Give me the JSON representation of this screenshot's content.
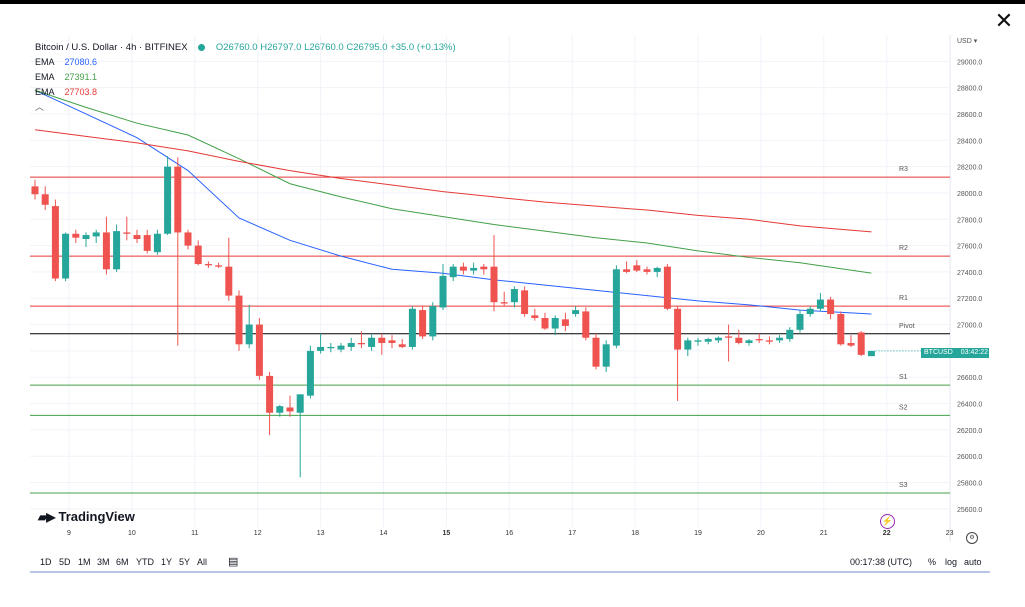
{
  "window": {
    "close_label": "✕"
  },
  "header": {
    "title": "Bitcoin / U.S. Dollar · 4h · BITFINEX",
    "ohlc": "O26760.0  H26797.0  L26760.0  C26795.0  +35.0 (+0.13%)",
    "indicators": [
      {
        "name": "EMA",
        "value": "27080.6",
        "color": "#2962ff"
      },
      {
        "name": "EMA",
        "value": "27391.1",
        "color": "#43a047"
      },
      {
        "name": "EMA",
        "value": "27703.8",
        "color": "#e53935"
      }
    ],
    "collapse_icon": "chevron-up-icon"
  },
  "price_scale": {
    "currency": "USD",
    "dropdown_icon": "chevron-down-icon"
  },
  "symbol_tag": {
    "symbol": "BTCUSD",
    "countdown": "03:42:22"
  },
  "branding": {
    "logo_text": "TradingView"
  },
  "bottom_bar": {
    "ranges": [
      "1D",
      "5D",
      "1M",
      "3M",
      "6M",
      "YTD",
      "1Y",
      "5Y",
      "All"
    ],
    "calendar_icon": "calendar-range-icon",
    "clock": "00:17:38 (UTC)",
    "percent": "%",
    "log": "log",
    "auto": "auto"
  },
  "colors": {
    "up": "#26a69a",
    "down": "#ef5350",
    "pivot": "#000000",
    "resistance": "#e53935",
    "support": "#43a047"
  },
  "chart_data": {
    "type": "candlestick",
    "title": "Bitcoin / U.S. Dollar · 4h · BITFINEX",
    "y_ticks": [
      25600,
      25800,
      26000,
      26200,
      26400,
      26600,
      26800,
      27000,
      27200,
      27400,
      27600,
      27800,
      28000,
      28200,
      28400,
      28600,
      28800,
      29000
    ],
    "ylim": [
      25500,
      29200
    ],
    "x_ticks": [
      "9",
      "10",
      "11",
      "12",
      "13",
      "14",
      "15",
      "16",
      "17",
      "18",
      "19",
      "20",
      "21",
      "22",
      "23"
    ],
    "x_ticks_bold": [
      "15",
      "22"
    ],
    "levels": [
      {
        "label": "R3",
        "value": 28120,
        "kind": "resistance"
      },
      {
        "label": "R2",
        "value": 27520,
        "kind": "resistance"
      },
      {
        "label": "R1",
        "value": 27140,
        "kind": "resistance"
      },
      {
        "label": "Pivot",
        "value": 26930,
        "kind": "pivot"
      },
      {
        "label": "S1",
        "value": 26540,
        "kind": "support"
      },
      {
        "label": "S2",
        "value": 26310,
        "kind": "support"
      },
      {
        "label": "S3",
        "value": 25720,
        "kind": "support"
      }
    ],
    "candles": [
      {
        "o": 28050,
        "h": 28100,
        "l": 27950,
        "c": 27990
      },
      {
        "o": 27990,
        "h": 28050,
        "l": 27870,
        "c": 27910
      },
      {
        "o": 27900,
        "h": 27950,
        "l": 27330,
        "c": 27350
      },
      {
        "o": 27350,
        "h": 27700,
        "l": 27330,
        "c": 27690
      },
      {
        "o": 27690,
        "h": 27720,
        "l": 27620,
        "c": 27660
      },
      {
        "o": 27650,
        "h": 27700,
        "l": 27590,
        "c": 27680
      },
      {
        "o": 27670,
        "h": 27720,
        "l": 27620,
        "c": 27700
      },
      {
        "o": 27700,
        "h": 27820,
        "l": 27380,
        "c": 27420
      },
      {
        "o": 27420,
        "h": 27760,
        "l": 27400,
        "c": 27710
      },
      {
        "o": 27700,
        "h": 27820,
        "l": 27640,
        "c": 27690
      },
      {
        "o": 27680,
        "h": 27720,
        "l": 27620,
        "c": 27650
      },
      {
        "o": 27680,
        "h": 27720,
        "l": 27540,
        "c": 27560
      },
      {
        "o": 27550,
        "h": 27720,
        "l": 27530,
        "c": 27690
      },
      {
        "o": 27690,
        "h": 28280,
        "l": 27680,
        "c": 28200
      },
      {
        "o": 28200,
        "h": 28270,
        "l": 26840,
        "c": 27700
      },
      {
        "o": 27700,
        "h": 27720,
        "l": 27570,
        "c": 27600
      },
      {
        "o": 27600,
        "h": 27640,
        "l": 27450,
        "c": 27460
      },
      {
        "o": 27460,
        "h": 27480,
        "l": 27430,
        "c": 27450
      },
      {
        "o": 27450,
        "h": 27470,
        "l": 27430,
        "c": 27440
      },
      {
        "o": 27440,
        "h": 27660,
        "l": 27180,
        "c": 27220
      },
      {
        "o": 27220,
        "h": 27260,
        "l": 26800,
        "c": 26850
      },
      {
        "o": 26850,
        "h": 27150,
        "l": 26820,
        "c": 27000
      },
      {
        "o": 27000,
        "h": 27050,
        "l": 26580,
        "c": 26610
      },
      {
        "o": 26610,
        "h": 26640,
        "l": 26160,
        "c": 26330
      },
      {
        "o": 26330,
        "h": 26390,
        "l": 26300,
        "c": 26380
      },
      {
        "o": 26370,
        "h": 26460,
        "l": 26300,
        "c": 26340
      },
      {
        "o": 26330,
        "h": 26470,
        "l": 25840,
        "c": 26470
      },
      {
        "o": 26460,
        "h": 26840,
        "l": 26440,
        "c": 26800
      },
      {
        "o": 26800,
        "h": 26930,
        "l": 26780,
        "c": 26830
      },
      {
        "o": 26820,
        "h": 26860,
        "l": 26790,
        "c": 26830
      },
      {
        "o": 26810,
        "h": 26860,
        "l": 26790,
        "c": 26840
      },
      {
        "o": 26830,
        "h": 26900,
        "l": 26800,
        "c": 26860
      },
      {
        "o": 26860,
        "h": 26950,
        "l": 26820,
        "c": 26850
      },
      {
        "o": 26830,
        "h": 26930,
        "l": 26800,
        "c": 26900
      },
      {
        "o": 26900,
        "h": 26930,
        "l": 26770,
        "c": 26860
      },
      {
        "o": 26880,
        "h": 26920,
        "l": 26820,
        "c": 26860
      },
      {
        "o": 26850,
        "h": 26890,
        "l": 26820,
        "c": 26830
      },
      {
        "o": 26830,
        "h": 27140,
        "l": 26810,
        "c": 27120
      },
      {
        "o": 27110,
        "h": 27140,
        "l": 26890,
        "c": 26910
      },
      {
        "o": 26910,
        "h": 27170,
        "l": 26880,
        "c": 27140
      },
      {
        "o": 27130,
        "h": 27460,
        "l": 27110,
        "c": 27370
      },
      {
        "o": 27360,
        "h": 27460,
        "l": 27330,
        "c": 27440
      },
      {
        "o": 27440,
        "h": 27470,
        "l": 27380,
        "c": 27410
      },
      {
        "o": 27410,
        "h": 27470,
        "l": 27380,
        "c": 27430
      },
      {
        "o": 27440,
        "h": 27460,
        "l": 27380,
        "c": 27420
      },
      {
        "o": 27440,
        "h": 27680,
        "l": 27100,
        "c": 27170
      },
      {
        "o": 27170,
        "h": 27250,
        "l": 27140,
        "c": 27160
      },
      {
        "o": 27170,
        "h": 27290,
        "l": 27130,
        "c": 27270
      },
      {
        "o": 27260,
        "h": 27290,
        "l": 27060,
        "c": 27080
      },
      {
        "o": 27070,
        "h": 27120,
        "l": 27030,
        "c": 27050
      },
      {
        "o": 27050,
        "h": 27090,
        "l": 26960,
        "c": 26970
      },
      {
        "o": 26970,
        "h": 27070,
        "l": 26920,
        "c": 27050
      },
      {
        "o": 27040,
        "h": 27090,
        "l": 26950,
        "c": 26990
      },
      {
        "o": 27080,
        "h": 27140,
        "l": 27060,
        "c": 27110
      },
      {
        "o": 27100,
        "h": 27130,
        "l": 26880,
        "c": 26900
      },
      {
        "o": 26900,
        "h": 26930,
        "l": 26660,
        "c": 26680
      },
      {
        "o": 26680,
        "h": 26880,
        "l": 26640,
        "c": 26850
      },
      {
        "o": 26840,
        "h": 27450,
        "l": 26820,
        "c": 27420
      },
      {
        "o": 27420,
        "h": 27480,
        "l": 27390,
        "c": 27400
      },
      {
        "o": 27450,
        "h": 27490,
        "l": 27400,
        "c": 27410
      },
      {
        "o": 27420,
        "h": 27440,
        "l": 27380,
        "c": 27400
      },
      {
        "o": 27400,
        "h": 27440,
        "l": 27360,
        "c": 27430
      },
      {
        "o": 27440,
        "h": 27460,
        "l": 27110,
        "c": 27120
      },
      {
        "o": 27120,
        "h": 27140,
        "l": 26420,
        "c": 26810
      },
      {
        "o": 26810,
        "h": 26900,
        "l": 26760,
        "c": 26880
      },
      {
        "o": 26870,
        "h": 26900,
        "l": 26840,
        "c": 26880
      },
      {
        "o": 26870,
        "h": 26900,
        "l": 26850,
        "c": 26890
      },
      {
        "o": 26880,
        "h": 26910,
        "l": 26860,
        "c": 26900
      },
      {
        "o": 26910,
        "h": 27000,
        "l": 26720,
        "c": 26900
      },
      {
        "o": 26900,
        "h": 26960,
        "l": 26850,
        "c": 26860
      },
      {
        "o": 26860,
        "h": 26890,
        "l": 26840,
        "c": 26880
      },
      {
        "o": 26890,
        "h": 26930,
        "l": 26860,
        "c": 26880
      },
      {
        "o": 26880,
        "h": 26910,
        "l": 26850,
        "c": 26870
      },
      {
        "o": 26880,
        "h": 26920,
        "l": 26860,
        "c": 26900
      },
      {
        "o": 26890,
        "h": 26980,
        "l": 26870,
        "c": 26960
      },
      {
        "o": 26960,
        "h": 27110,
        "l": 26940,
        "c": 27080
      },
      {
        "o": 27080,
        "h": 27140,
        "l": 27060,
        "c": 27120
      },
      {
        "o": 27120,
        "h": 27240,
        "l": 27100,
        "c": 27190
      },
      {
        "o": 27190,
        "h": 27210,
        "l": 27040,
        "c": 27080
      },
      {
        "o": 27080,
        "h": 27100,
        "l": 26840,
        "c": 26850
      },
      {
        "o": 26860,
        "h": 26920,
        "l": 26830,
        "c": 26840
      },
      {
        "o": 26940,
        "h": 26950,
        "l": 26760,
        "c": 26770
      },
      {
        "o": 26760,
        "h": 26800,
        "l": 26760,
        "c": 26800
      }
    ],
    "ema_series": [
      {
        "name": "EMA",
        "value_label": "27080.6",
        "color": "#2962ff",
        "x": [
          0,
          5,
          10,
          15,
          20,
          25,
          30,
          35,
          40,
          45,
          50,
          55,
          60,
          65,
          70,
          75,
          82
        ],
        "y": [
          28780,
          28600,
          28420,
          28170,
          27810,
          27640,
          27520,
          27420,
          27390,
          27340,
          27300,
          27260,
          27220,
          27180,
          27150,
          27110,
          27080
        ]
      },
      {
        "name": "EMA",
        "value_label": "27391.1",
        "color": "#43a047",
        "x": [
          0,
          5,
          10,
          15,
          20,
          25,
          30,
          35,
          40,
          45,
          50,
          55,
          60,
          65,
          70,
          75,
          82
        ],
        "y": [
          28780,
          28650,
          28530,
          28440,
          28260,
          28070,
          27970,
          27880,
          27820,
          27760,
          27710,
          27660,
          27620,
          27560,
          27510,
          27470,
          27391
        ]
      },
      {
        "name": "EMA",
        "value_label": "27703.8",
        "color": "#e53935",
        "x": [
          0,
          5,
          10,
          15,
          20,
          25,
          30,
          35,
          40,
          45,
          50,
          55,
          60,
          65,
          70,
          75,
          82
        ],
        "y": [
          28480,
          28430,
          28380,
          28320,
          28240,
          28170,
          28110,
          28060,
          28010,
          27970,
          27930,
          27900,
          27870,
          27830,
          27800,
          27750,
          27704
        ]
      }
    ],
    "grid": true
  }
}
